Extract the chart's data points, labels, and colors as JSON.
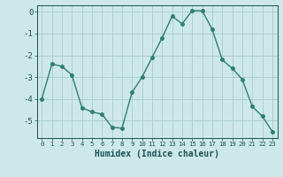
{
  "xlabel": "Humidex (Indice chaleur)",
  "ylabel": "",
  "x": [
    0,
    1,
    2,
    3,
    4,
    5,
    6,
    7,
    8,
    9,
    10,
    11,
    12,
    13,
    14,
    15,
    16,
    17,
    18,
    19,
    20,
    21,
    22,
    23
  ],
  "y": [
    -4.0,
    -2.4,
    -2.5,
    -2.9,
    -4.4,
    -4.6,
    -4.7,
    -5.3,
    -5.35,
    -3.7,
    -3.0,
    -2.1,
    -1.2,
    -0.2,
    -0.55,
    0.05,
    0.05,
    -0.8,
    -2.2,
    -2.6,
    -3.1,
    -4.35,
    -4.8,
    -5.5
  ],
  "line_color": "#2d7f6e",
  "marker": "o",
  "marker_size": 2.5,
  "line_width": 1.0,
  "bg_color": "#cde8ea",
  "grid_color": "#aacccc",
  "ylim": [
    -5.8,
    0.3
  ],
  "yticks": [
    0,
    -1,
    -2,
    -3,
    -4,
    -5
  ],
  "xlim": [
    -0.5,
    23.5
  ],
  "xticks": [
    0,
    1,
    2,
    3,
    4,
    5,
    6,
    7,
    8,
    9,
    10,
    11,
    12,
    13,
    14,
    15,
    16,
    17,
    18,
    19,
    20,
    21,
    22,
    23
  ],
  "tick_color": "#1a5050",
  "axis_color": "#1a5050",
  "xlabel_fontsize": 7.0,
  "xtick_fontsize": 5.2,
  "ytick_fontsize": 6.5
}
